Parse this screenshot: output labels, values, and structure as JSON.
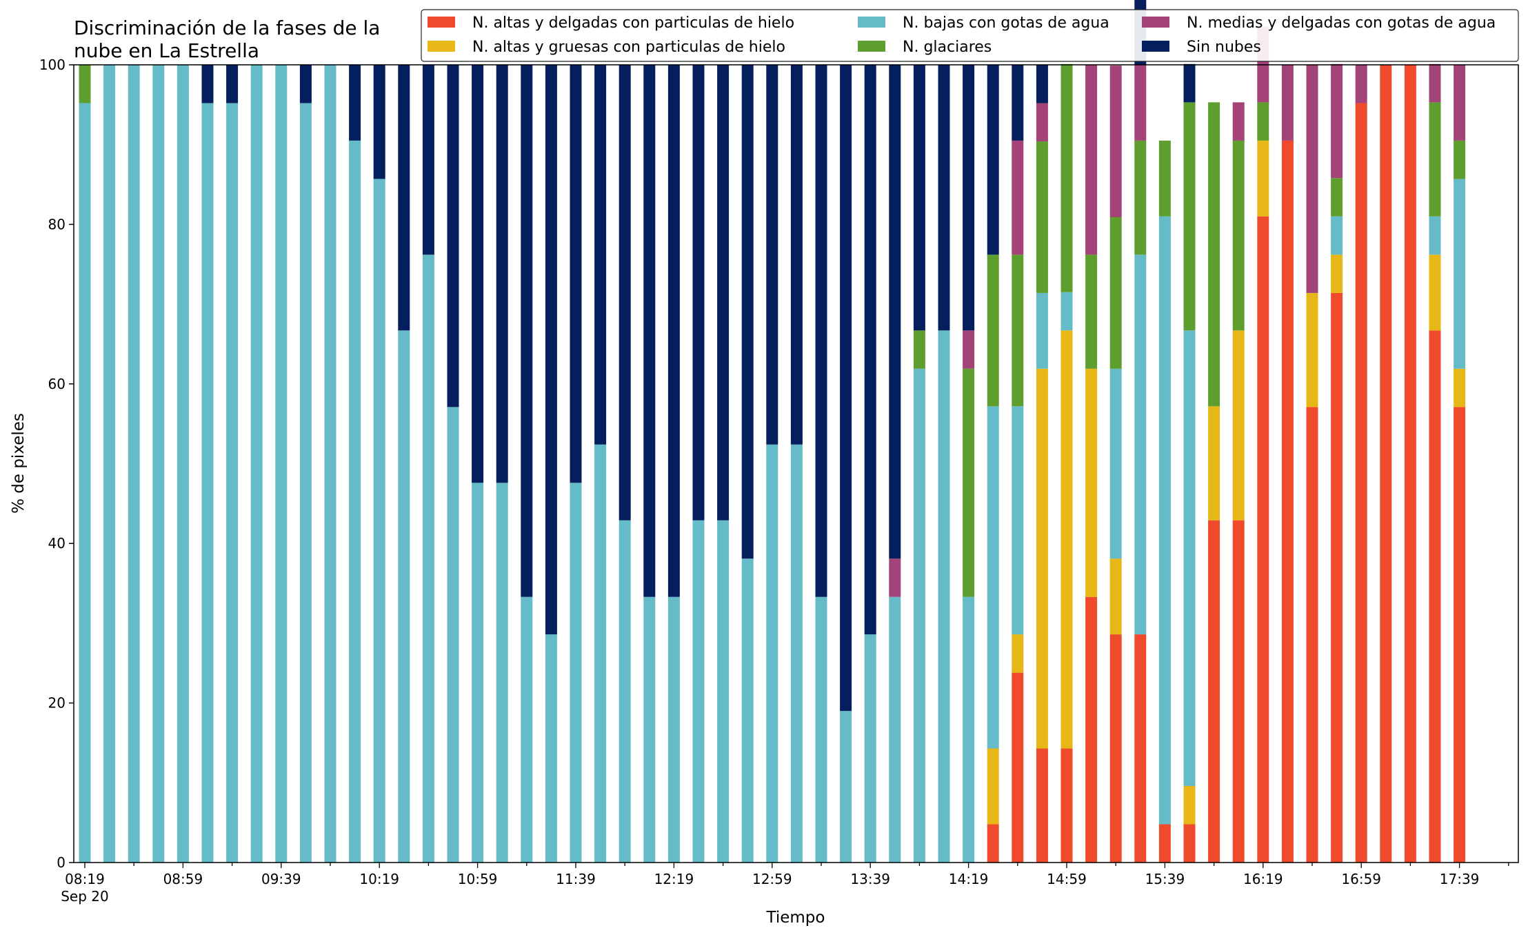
{
  "chart_data": {
    "type": "bar",
    "stacked": true,
    "title": "Discriminación de la fases de la nube en La Estrella",
    "title_lines": [
      "Discriminación de la fases de la",
      "nube en La Estrella"
    ],
    "xlabel": "Tiempo",
    "ylabel": "% de pixeles",
    "ylim": [
      0,
      100
    ],
    "yticks": [
      0,
      20,
      40,
      60,
      80,
      100
    ],
    "x_start": "08:19",
    "x_interval_minutes": 10,
    "xtick_labels": [
      "08:19",
      "08:59",
      "09:39",
      "10:19",
      "10:59",
      "11:39",
      "12:19",
      "12:59",
      "13:39",
      "14:19",
      "14:59",
      "15:39",
      "16:19",
      "16:59",
      "17:39"
    ],
    "xtick_sublabel": "Sep 20",
    "grid": false,
    "legend_position": "top-right",
    "times": [
      "08:19",
      "08:29",
      "08:39",
      "08:49",
      "08:59",
      "09:09",
      "09:19",
      "09:29",
      "09:39",
      "09:49",
      "09:59",
      "10:09",
      "10:19",
      "10:29",
      "10:39",
      "10:49",
      "10:59",
      "11:09",
      "11:19",
      "11:29",
      "11:39",
      "11:49",
      "11:59",
      "12:09",
      "12:19",
      "12:29",
      "12:39",
      "12:49",
      "12:59",
      "13:09",
      "13:19",
      "13:29",
      "13:39",
      "13:49",
      "13:59",
      "14:09",
      "14:19",
      "14:29",
      "14:39",
      "14:49",
      "14:59",
      "15:09",
      "15:19",
      "15:29",
      "15:39",
      "15:49",
      "15:59",
      "16:09",
      "16:19",
      "16:29",
      "16:39",
      "16:49",
      "16:59",
      "17:09",
      "17:19",
      "17:29",
      "17:39"
    ],
    "series": [
      {
        "name": "N. altas y delgadas con particulas de hielo",
        "color": "#ee4a2b",
        "values": [
          0,
          0,
          0,
          0,
          0,
          0,
          0,
          0,
          0,
          0,
          0,
          0,
          0,
          0,
          0,
          0,
          0,
          0,
          0,
          0,
          0,
          0,
          0,
          0,
          0,
          0,
          0,
          0,
          0,
          0,
          0,
          0,
          0,
          0,
          0,
          0,
          0,
          4.8,
          23.8,
          14.3,
          14.3,
          33.3,
          28.6,
          28.6,
          4.8,
          4.8,
          42.9,
          42.9,
          81.0,
          90.5,
          57.1,
          71.4,
          95.2,
          100,
          100,
          66.7,
          57.1
        ]
      },
      {
        "name": "N. altas y gruesas con particulas de hielo",
        "color": "#e6b716",
        "values": [
          0,
          0,
          0,
          0,
          0,
          0,
          0,
          0,
          0,
          0,
          0,
          0,
          0,
          0,
          0,
          0,
          0,
          0,
          0,
          0,
          0,
          0,
          0,
          0,
          0,
          0,
          0,
          0,
          0,
          0,
          0,
          0,
          0,
          0,
          0,
          0,
          0,
          9.5,
          4.8,
          47.6,
          52.4,
          28.6,
          9.5,
          0,
          0,
          4.8,
          14.3,
          23.8,
          9.5,
          0,
          14.3,
          4.8,
          0,
          0,
          0,
          9.5,
          4.8
        ]
      },
      {
        "name": "N. bajas con gotas de agua",
        "color": "#65bcc8",
        "values": [
          95.2,
          100,
          100,
          100,
          100,
          95.2,
          95.2,
          100,
          100,
          95.2,
          100,
          90.5,
          85.7,
          66.7,
          76.2,
          57.1,
          47.6,
          47.6,
          33.3,
          28.6,
          47.6,
          52.4,
          42.9,
          33.3,
          33.3,
          42.9,
          42.9,
          38.1,
          52.4,
          52.4,
          33.3,
          19.0,
          28.6,
          33.3,
          61.9,
          66.7,
          33.3,
          42.9,
          28.6,
          9.5,
          4.8,
          0,
          23.8,
          47.6,
          76.2,
          57.1,
          0,
          0,
          0,
          0,
          0,
          4.8,
          0,
          0,
          0,
          4.8,
          23.8
        ]
      },
      {
        "name": "N. glaciares",
        "color": "#5e9e2e",
        "values": [
          4.8,
          0,
          0,
          0,
          0,
          0,
          0,
          0,
          0,
          0,
          0,
          0,
          0,
          0,
          0,
          0,
          0,
          0,
          0,
          0,
          0,
          0,
          0,
          0,
          0,
          0,
          0,
          0,
          0,
          0,
          0,
          0,
          0,
          0,
          4.8,
          0,
          28.6,
          19.0,
          19.0,
          19.0,
          28.6,
          14.3,
          19.0,
          14.3,
          9.5,
          28.6,
          38.1,
          23.8,
          4.8,
          0,
          0,
          4.8,
          0,
          0,
          0,
          14.3,
          4.8
        ]
      },
      {
        "name": "N. medias y delgadas con gotas de agua",
        "color": "#a34378",
        "values": [
          0,
          0,
          0,
          0,
          0,
          0,
          0,
          0,
          0,
          0,
          0,
          0,
          0,
          0,
          0,
          0,
          0,
          0,
          0,
          0,
          0,
          0,
          0,
          0,
          0,
          0,
          0,
          0,
          0,
          0,
          0,
          0,
          0,
          4.8,
          0,
          0,
          4.8,
          0,
          14.3,
          4.8,
          0,
          23.8,
          19.0,
          9.5,
          0,
          0,
          0,
          4.8,
          9.5,
          9.5,
          28.6,
          14.3,
          4.8,
          0,
          0,
          4.8,
          9.5
        ]
      },
      {
        "name": "Sin nubes",
        "color": "#051f5e",
        "values": [
          0,
          0,
          0,
          0,
          0,
          4.8,
          4.8,
          0,
          0,
          4.8,
          0,
          9.5,
          14.3,
          33.3,
          23.8,
          42.9,
          52.4,
          52.4,
          66.7,
          71.4,
          52.4,
          47.6,
          57.1,
          66.7,
          66.7,
          57.1,
          57.1,
          61.9,
          47.6,
          47.6,
          66.7,
          81.0,
          71.4,
          61.9,
          33.3,
          33.3,
          33.3,
          23.8,
          9.5,
          4.8,
          0,
          0,
          0,
          9.5,
          0,
          4.8,
          0,
          0,
          0,
          0,
          0,
          0,
          0,
          0,
          0,
          0,
          0
        ]
      }
    ]
  }
}
